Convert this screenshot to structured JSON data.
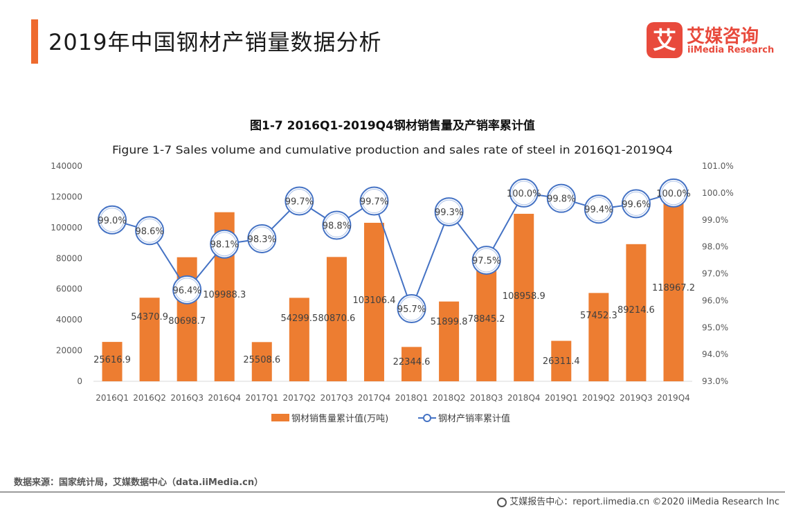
{
  "header": {
    "title": "2019年中国钢材产销量数据分析",
    "accent_color": "#ee6a2e"
  },
  "logo": {
    "mark": "艾",
    "name_cn": "艾媒咨询",
    "name_en": "iiMedia Research",
    "color": "#e84a3c"
  },
  "chart_data": {
    "type": "bar",
    "title": "图1-7 2016Q1-2019Q4钢材销售量及产销率累计值",
    "subtitle": "Figure 1-7 Sales volume and cumulative production and sales rate of steel in 2016Q1-2019Q4",
    "categories": [
      "2016Q1",
      "2016Q2",
      "2016Q3",
      "2016Q4",
      "2017Q1",
      "2017Q2",
      "2017Q3",
      "2017Q4",
      "2018Q1",
      "2018Q2",
      "2018Q3",
      "2018Q4",
      "2019Q1",
      "2019Q2",
      "2019Q3",
      "2019Q4"
    ],
    "series": [
      {
        "name": "钢材销售量累计值(万吨)",
        "type": "bar",
        "axis": "left",
        "color": "#ed7d31",
        "values": [
          25616.9,
          54370.9,
          80698.7,
          109988.3,
          25508.6,
          54299.5,
          80870.6,
          103106.4,
          22344.6,
          51899.8,
          78845.2,
          108958.9,
          26311.4,
          57452.3,
          89214.6,
          118967.2
        ],
        "labels": [
          "25616.9",
          "54370.9",
          "80698.7",
          "109988.3",
          "25508.6",
          "54299.5",
          "80870.6",
          "103106.4",
          "22344.6",
          "51899.8",
          "78845.2",
          "108958.9",
          "26311.4",
          "57452.3",
          "89214.6",
          "118967.2"
        ]
      },
      {
        "name": "钢材产销率累计值",
        "type": "line",
        "axis": "right",
        "color": "#4472c4",
        "values": [
          99.0,
          98.6,
          96.4,
          98.1,
          98.3,
          99.7,
          98.8,
          99.7,
          95.7,
          99.3,
          97.5,
          100.0,
          99.8,
          99.4,
          99.6,
          100.0
        ],
        "labels": [
          "99.0%",
          "98.6%",
          "96.4%",
          "98.1%",
          "98.3%",
          "99.7%",
          "98.8%",
          "99.7%",
          "95.7%",
          "99.3%",
          "97.5%",
          "100.0%",
          "99.8%",
          "99.4%",
          "99.6%",
          "100.0%"
        ]
      }
    ],
    "y_left": {
      "ylim": [
        0,
        140000
      ],
      "ticks": [
        "0",
        "20000",
        "40000",
        "60000",
        "80000",
        "100000",
        "120000",
        "140000"
      ]
    },
    "y_right": {
      "ylim": [
        93.0,
        101.0
      ],
      "ticks": [
        "93.0%",
        "94.0%",
        "95.0%",
        "96.0%",
        "97.0%",
        "98.0%",
        "99.0%",
        "100.0%",
        "101.0%"
      ]
    },
    "grid": false,
    "legend_position": "bottom"
  },
  "source": "数据来源：国家统计局，艾媒数据中心（data.iiMedia.cn）",
  "footer": "艾媒报告中心：report.iimedia.cn ©2020 iiMedia Research Inc"
}
